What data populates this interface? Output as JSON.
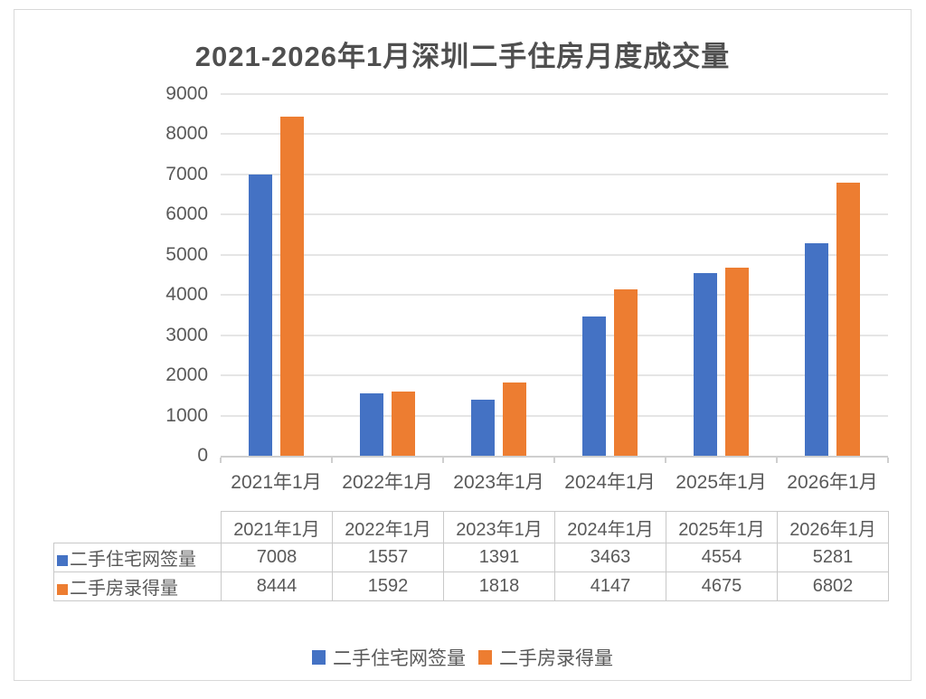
{
  "title": "2021-2026年1月深圳二手住房月度成交量",
  "chart_data": {
    "type": "bar",
    "title": "2021-2026年1月深圳二手住房月度成交量",
    "categories": [
      "2021年1月",
      "2022年1月",
      "2023年1月",
      "2024年1月",
      "2025年1月",
      "2026年1月"
    ],
    "series": [
      {
        "name": "二手住宅网签量",
        "color": "#4472C4",
        "values": [
          7008,
          1557,
          1391,
          3463,
          4554,
          5281
        ]
      },
      {
        "name": "二手房录得量",
        "color": "#ED7D31",
        "values": [
          8444,
          1592,
          1818,
          4147,
          4675,
          6802
        ]
      }
    ],
    "ylim": [
      0,
      9000
    ],
    "ytick_interval": 1000,
    "yticks": [
      0,
      1000,
      2000,
      3000,
      4000,
      5000,
      6000,
      7000,
      8000,
      9000
    ],
    "grid": true,
    "legend_position": "bottom",
    "xlabel": "",
    "ylabel": ""
  },
  "table": {
    "header": [
      "2021年1月",
      "2022年1月",
      "2023年1月",
      "2024年1月",
      "2025年1月",
      "2026年1月"
    ],
    "rows": [
      {
        "label": "二手住宅网签量",
        "color": "#4472C4",
        "values": [
          "7008",
          "1557",
          "1391",
          "3463",
          "4554",
          "5281"
        ]
      },
      {
        "label": "二手房录得量",
        "color": "#ED7D31",
        "values": [
          "8444",
          "1592",
          "1818",
          "4147",
          "4675",
          "6802"
        ]
      }
    ]
  },
  "legend": {
    "items": [
      {
        "label": "二手住宅网签量",
        "color": "#4472C4"
      },
      {
        "label": "二手房录得量",
        "color": "#ED7D31"
      }
    ]
  },
  "colors": {
    "series1": "#4472C4",
    "series2": "#ED7D31",
    "text": "#595959",
    "grid": "#E5E5E5"
  }
}
